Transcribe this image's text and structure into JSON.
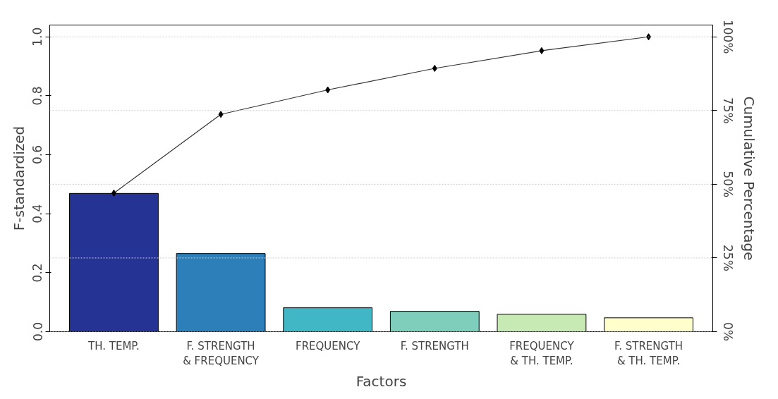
{
  "chart_data": {
    "type": "bar",
    "xlabel": "Factors",
    "ylabel": "F-standardized",
    "y2label": "Cumulative Percentage",
    "categories": [
      "TH. TEMP.",
      "F. STRENGTH\n& FREQUENCY",
      "FREQUENCY",
      "F. STRENGTH",
      "FREQUENCY\n& TH. TEMP.",
      "F. STRENGTH\n& TH. TEMP."
    ],
    "series": [
      {
        "colors": [
          "#253494",
          "#2c7fb8",
          "#41b6c4",
          "#7fcdbb",
          "#c7e9b4",
          "#ffffcc"
        ],
        "values": [
          0.469,
          0.265,
          0.081,
          0.069,
          0.059,
          0.047
        ]
      },
      {
        "type": "line",
        "axis": "y2",
        "color": "#333333",
        "marker": "diamond",
        "values": [
          47,
          73.7,
          82,
          89.3,
          95.3,
          100
        ]
      }
    ],
    "ylim": [
      0,
      1.04
    ],
    "yticks": [
      {
        "value": 0,
        "label": "0.0"
      },
      {
        "value": 0.2,
        "label": "0.2"
      },
      {
        "value": 0.4,
        "label": "0.4"
      },
      {
        "value": 0.6,
        "label": "0.6"
      },
      {
        "value": 0.8,
        "label": "0.8"
      },
      {
        "value": 1.0,
        "label": "1.0"
      }
    ],
    "y2lim": [
      0,
      104
    ],
    "y2ticks": [
      {
        "value": 0,
        "label": "0%"
      },
      {
        "value": 25,
        "label": "25%"
      },
      {
        "value": 50,
        "label": "50%"
      },
      {
        "value": 75,
        "label": "75%"
      },
      {
        "value": 100,
        "label": "100%"
      }
    ],
    "grid": "y2"
  }
}
